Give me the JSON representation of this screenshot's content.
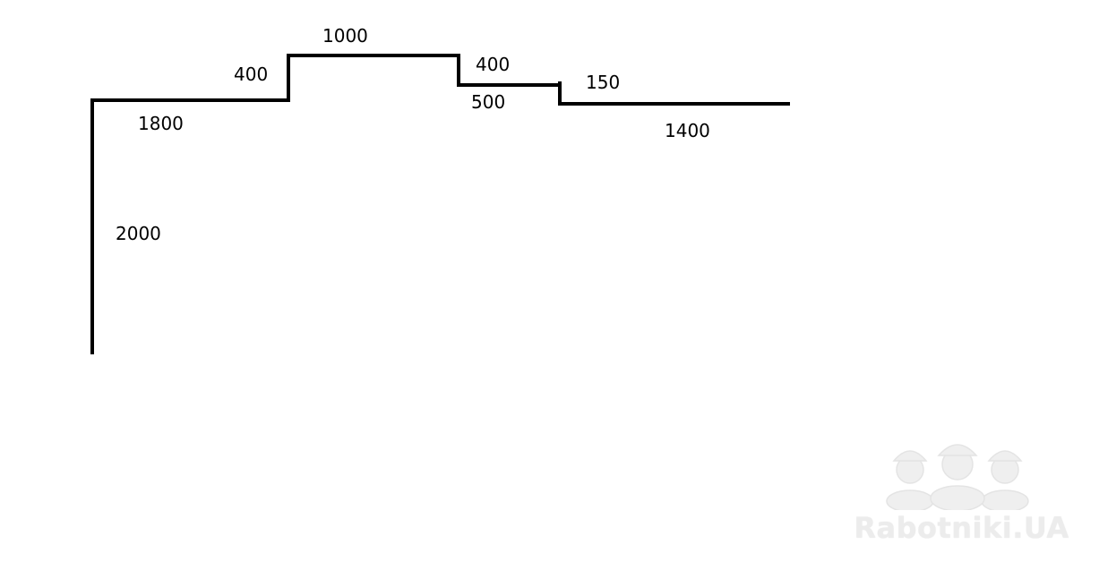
{
  "diagram": {
    "line_color": "#000000",
    "segments": [
      {
        "id": "left-wall",
        "label": "2000"
      },
      {
        "id": "first-horizontal",
        "label": "1800"
      },
      {
        "id": "first-step-up",
        "label": "400"
      },
      {
        "id": "top-horizontal",
        "label": "1000"
      },
      {
        "id": "first-step-down",
        "label": "400"
      },
      {
        "id": "middle-horizontal",
        "label": "500"
      },
      {
        "id": "second-step-down",
        "label": "150"
      },
      {
        "id": "last-horizontal",
        "label": "1400"
      }
    ]
  },
  "watermark": {
    "text": "Rabotniki.UA",
    "icon": "three-workers-helmet-icon",
    "color": "#ececec"
  }
}
